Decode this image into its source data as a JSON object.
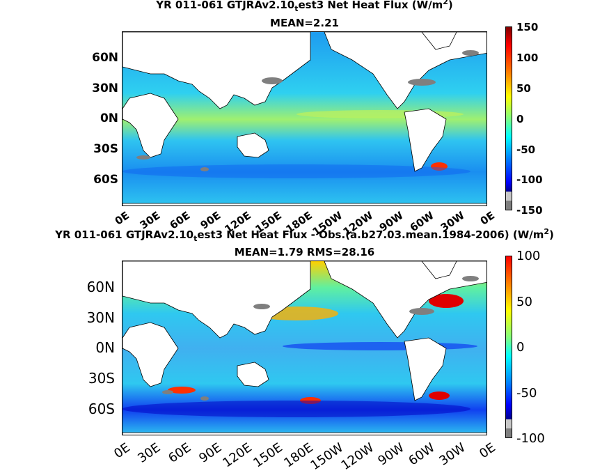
{
  "colors": {
    "ocean_base": "#2fc4f0",
    "land": "#ffffff",
    "missing": "#7f7f7f",
    "colormap": [
      "#00008f",
      "#0000ff",
      "#0080ff",
      "#00ffff",
      "#80ff80",
      "#ffff00",
      "#ff8000",
      "#ff0000",
      "#800000"
    ]
  },
  "chart_data": [
    {
      "type": "heatmap",
      "title": "YR 011-061 GTJRAv2.10_test3  Net Heat Flux (W/m2)",
      "title_parts": {
        "pre": "YR 011-061 GTJRAv2.10",
        "sub": "t",
        "post": "est3  Net Heat Flux (W/m",
        "sup": "2",
        "end": ")"
      },
      "subtitle": "MEAN=2.21",
      "lat_ticks": [
        "60N",
        "30N",
        "0N",
        "30S",
        "60S"
      ],
      "lon_ticks": [
        "0E",
        "30E",
        "60E",
        "90E",
        "120E",
        "150E",
        "180E",
        "150W",
        "120W",
        "90W",
        "60W",
        "30W",
        "0E"
      ],
      "colorbar": {
        "min": -150,
        "max": 150,
        "ticks": [
          "150",
          "100",
          "50",
          "0",
          "-50",
          "-100",
          "-150"
        ]
      }
    },
    {
      "type": "heatmap",
      "title": "YR 011-061 GTJRAv2.10_test3  Net Heat Flux - Obs.(a.b27.03.mean.1984-2006) (W/m2)",
      "title_parts": {
        "pre": "YR 011-061 GTJRAv2.10",
        "sub": "t",
        "post": "est3  Net Heat Flux - Obs.(a.b27.03.mean.1984-2006) (W/m",
        "sup": "2",
        "end": ")"
      },
      "subtitle": "MEAN=1.79 RMS=28.16",
      "lat_ticks": [
        "60N",
        "30N",
        "0N",
        "30S",
        "60S"
      ],
      "lon_ticks": [
        "0E",
        "30E",
        "60E",
        "90E",
        "120E",
        "150E",
        "180E",
        "150W",
        "120W",
        "90W",
        "60W",
        "30W",
        "0E"
      ],
      "colorbar": {
        "min": -100,
        "max": 100,
        "ticks": [
          "100",
          "50",
          "0",
          "-50",
          "-100"
        ]
      }
    }
  ]
}
